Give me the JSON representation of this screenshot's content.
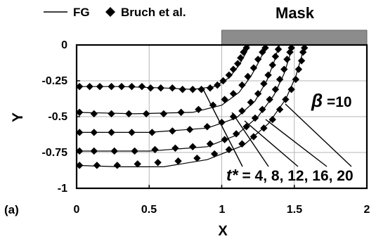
{
  "chart_data": {
    "type": "scatter",
    "title": "",
    "xlabel": "X",
    "ylabel": "Y",
    "xlim": [
      0,
      2
    ],
    "ylim": [
      -1,
      0
    ],
    "xticks": [
      "0",
      "0.5",
      "1",
      "1.5",
      "2"
    ],
    "yticks": [
      "0",
      "-0.25",
      "-0.5",
      "-0.75",
      "-1"
    ],
    "grid": true,
    "legend": {
      "placement": "top-left",
      "entries": [
        {
          "label": "FG",
          "marker": "line"
        },
        {
          "label": "Bruch et al.",
          "marker": "diamond"
        }
      ]
    },
    "mask": {
      "label": "Mask",
      "x_start": 1.0,
      "x_end": 2.0
    },
    "annotations": {
      "beta_symbol": "β",
      "beta_rest": " =10",
      "t_label": "t*",
      "t_values": " = 4, 8, 12, 16, 20",
      "panel_label": "(a)"
    },
    "series": [
      {
        "name": "t* = 4",
        "line": [
          [
            0,
            -0.29
          ],
          [
            0.3,
            -0.29
          ],
          [
            0.6,
            -0.3
          ],
          [
            0.8,
            -0.31
          ],
          [
            0.95,
            -0.29
          ],
          [
            1.05,
            -0.23
          ],
          [
            1.12,
            -0.14
          ],
          [
            1.17,
            -0.05
          ],
          [
            1.19,
            0
          ]
        ],
        "points": [
          [
            0.02,
            -0.29
          ],
          [
            0.09,
            -0.29
          ],
          [
            0.16,
            -0.29
          ],
          [
            0.24,
            -0.29
          ],
          [
            0.31,
            -0.29
          ],
          [
            0.38,
            -0.29
          ],
          [
            0.45,
            -0.29
          ],
          [
            0.51,
            -0.3
          ],
          [
            0.58,
            -0.3
          ],
          [
            0.66,
            -0.3
          ],
          [
            0.73,
            -0.31
          ],
          [
            0.8,
            -0.31
          ],
          [
            0.86,
            -0.31
          ],
          [
            0.92,
            -0.3
          ],
          [
            0.97,
            -0.28
          ],
          [
            1.01,
            -0.25
          ],
          [
            1.05,
            -0.21
          ],
          [
            1.08,
            -0.17
          ],
          [
            1.11,
            -0.13
          ],
          [
            1.13,
            -0.09
          ],
          [
            1.15,
            -0.05
          ],
          [
            1.17,
            -0.02
          ]
        ]
      },
      {
        "name": "t* = 8",
        "line": [
          [
            0,
            -0.47
          ],
          [
            0.4,
            -0.48
          ],
          [
            0.8,
            -0.47
          ],
          [
            1.0,
            -0.42
          ],
          [
            1.12,
            -0.33
          ],
          [
            1.2,
            -0.22
          ],
          [
            1.26,
            -0.11
          ],
          [
            1.3,
            -0.02
          ],
          [
            1.31,
            0
          ]
        ],
        "points": [
          [
            0.02,
            -0.47
          ],
          [
            0.12,
            -0.48
          ],
          [
            0.24,
            -0.48
          ],
          [
            0.36,
            -0.48
          ],
          [
            0.48,
            -0.48
          ],
          [
            0.6,
            -0.48
          ],
          [
            0.72,
            -0.47
          ],
          [
            0.84,
            -0.45
          ],
          [
            0.94,
            -0.42
          ],
          [
            1.02,
            -0.38
          ],
          [
            1.08,
            -0.34
          ],
          [
            1.14,
            -0.28
          ],
          [
            1.18,
            -0.22
          ],
          [
            1.22,
            -0.16
          ],
          [
            1.25,
            -0.1
          ],
          [
            1.28,
            -0.05
          ],
          [
            1.3,
            -0.02
          ]
        ]
      },
      {
        "name": "t* = 12",
        "line": [
          [
            0,
            -0.61
          ],
          [
            0.5,
            -0.61
          ],
          [
            0.9,
            -0.58
          ],
          [
            1.1,
            -0.51
          ],
          [
            1.23,
            -0.39
          ],
          [
            1.31,
            -0.25
          ],
          [
            1.36,
            -0.12
          ],
          [
            1.39,
            -0.02
          ],
          [
            1.4,
            0
          ]
        ],
        "points": [
          [
            0.02,
            -0.61
          ],
          [
            0.12,
            -0.61
          ],
          [
            0.24,
            -0.61
          ],
          [
            0.38,
            -0.61
          ],
          [
            0.52,
            -0.61
          ],
          [
            0.66,
            -0.6
          ],
          [
            0.78,
            -0.59
          ],
          [
            0.9,
            -0.57
          ],
          [
            1.0,
            -0.54
          ],
          [
            1.08,
            -0.5
          ],
          [
            1.14,
            -0.46
          ],
          [
            1.2,
            -0.4
          ],
          [
            1.25,
            -0.34
          ],
          [
            1.29,
            -0.27
          ],
          [
            1.32,
            -0.21
          ],
          [
            1.35,
            -0.14
          ],
          [
            1.37,
            -0.08
          ],
          [
            1.39,
            -0.03
          ]
        ]
      },
      {
        "name": "t* = 16",
        "line": [
          [
            0,
            -0.74
          ],
          [
            0.5,
            -0.74
          ],
          [
            0.9,
            -0.71
          ],
          [
            1.1,
            -0.63
          ],
          [
            1.25,
            -0.5
          ],
          [
            1.36,
            -0.35
          ],
          [
            1.43,
            -0.2
          ],
          [
            1.47,
            -0.07
          ],
          [
            1.49,
            0
          ]
        ],
        "points": [
          [
            0.02,
            -0.74
          ],
          [
            0.12,
            -0.74
          ],
          [
            0.26,
            -0.74
          ],
          [
            0.4,
            -0.74
          ],
          [
            0.54,
            -0.73
          ],
          [
            0.68,
            -0.72
          ],
          [
            0.8,
            -0.71
          ],
          [
            0.92,
            -0.69
          ],
          [
            1.02,
            -0.66
          ],
          [
            1.1,
            -0.62
          ],
          [
            1.17,
            -0.57
          ],
          [
            1.23,
            -0.51
          ],
          [
            1.28,
            -0.45
          ],
          [
            1.33,
            -0.38
          ],
          [
            1.37,
            -0.31
          ],
          [
            1.4,
            -0.24
          ],
          [
            1.43,
            -0.17
          ],
          [
            1.45,
            -0.1
          ],
          [
            1.47,
            -0.05
          ],
          [
            1.48,
            -0.02
          ]
        ]
      },
      {
        "name": "t* = 20",
        "line": [
          [
            0,
            -0.84
          ],
          [
            0.3,
            -0.85
          ],
          [
            0.6,
            -0.85
          ],
          [
            0.9,
            -0.8
          ],
          [
            1.15,
            -0.7
          ],
          [
            1.32,
            -0.55
          ],
          [
            1.44,
            -0.38
          ],
          [
            1.51,
            -0.22
          ],
          [
            1.55,
            -0.08
          ],
          [
            1.57,
            0
          ]
        ],
        "points": [
          [
            0.02,
            -0.84
          ],
          [
            0.14,
            -0.84
          ],
          [
            0.28,
            -0.84
          ],
          [
            0.42,
            -0.83
          ],
          [
            0.56,
            -0.82
          ],
          [
            0.7,
            -0.81
          ],
          [
            0.83,
            -0.79
          ],
          [
            0.95,
            -0.76
          ],
          [
            1.05,
            -0.73
          ],
          [
            1.14,
            -0.69
          ],
          [
            1.22,
            -0.64
          ],
          [
            1.29,
            -0.58
          ],
          [
            1.35,
            -0.52
          ],
          [
            1.4,
            -0.45
          ],
          [
            1.44,
            -0.38
          ],
          [
            1.48,
            -0.31
          ],
          [
            1.51,
            -0.24
          ],
          [
            1.53,
            -0.17
          ],
          [
            1.55,
            -0.11
          ],
          [
            1.56,
            -0.05
          ],
          [
            1.57,
            -0.02
          ]
        ]
      }
    ]
  }
}
